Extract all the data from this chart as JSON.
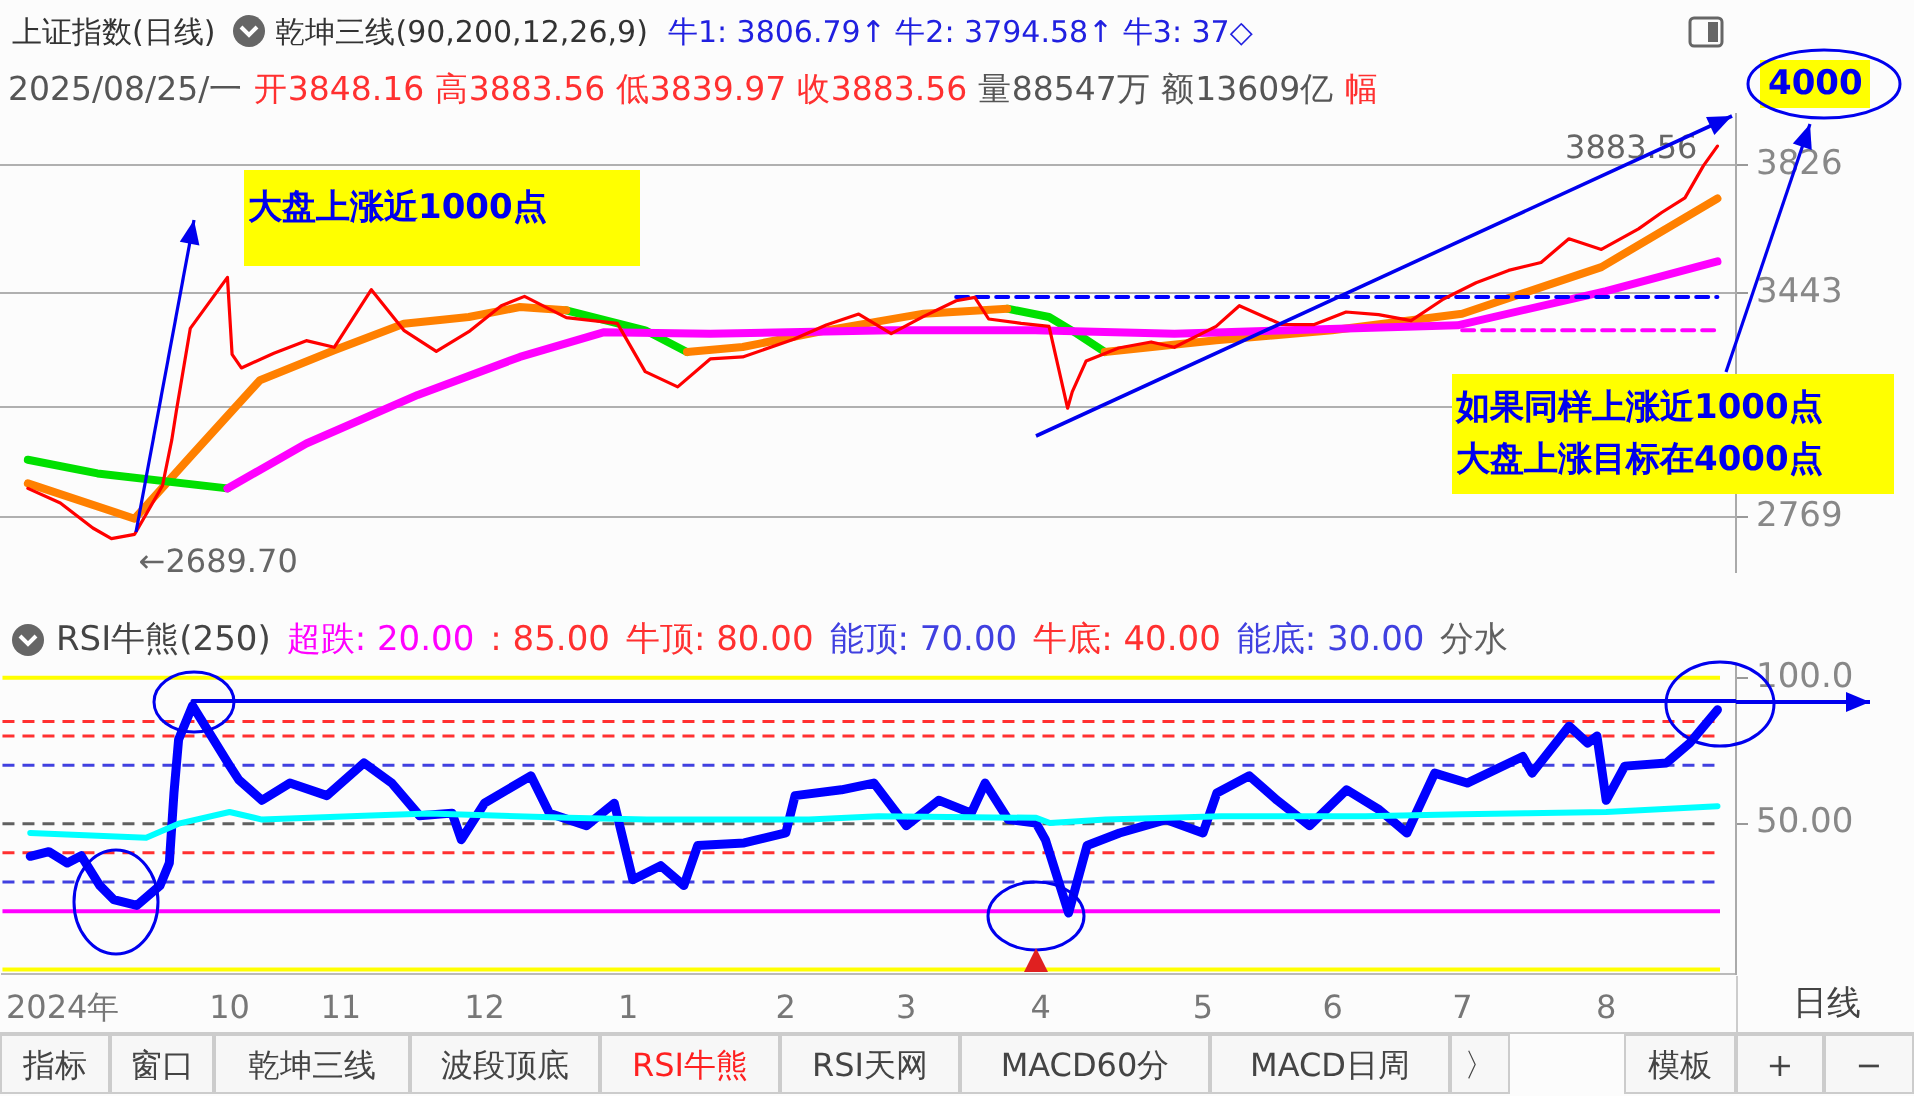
{
  "chart_data": [
    {
      "type": "line",
      "title": "上证指数(日线)",
      "subtitle": "2025/08/25/一 开3848.16 高3883.56 低3839.97 收3883.56 量88547万 额13609亿 幅",
      "annotations": [
        "乾坤三线(90,200,12,26,9)",
        "牛1: 3806.79↑ 牛2: 3794.58↑ 牛3: 37◇",
        "大盘上涨近1000点",
        "如果同样上涨近1000点",
        "大盘上涨目标在4000点",
        "4000",
        {
          "text": "←2689.70",
          "x": "2024-09-18",
          "y": 2689.7
        },
        {
          "text": "3883.56",
          "x": "2025-08-25",
          "y": 3883.56
        }
      ],
      "xlim": [
        "2024-08-20",
        "2025-08-29"
      ],
      "ylim": [
        2605,
        3980
      ],
      "yticks": [
        3826,
        3443,
        {
          "value": 3100,
          "label": null
        },
        2769
      ],
      "grid": "y",
      "tick_labels": "y",
      "series": [
        {
          "color": "#ff00ff",
          "x": [
            "2024-10-08",
            "2024-10-25",
            "2024-11-18",
            "2024-12-10",
            "2024-12-28",
            "2025-01-20",
            "2025-02-28",
            "2025-03-31",
            "2025-04-30",
            "2025-06-30",
            "2025-08-01",
            "2025-08-25"
          ],
          "values": [
            2855,
            2990,
            3136,
            3250,
            3324,
            3320,
            3330,
            3330,
            3320,
            3345,
            3448,
            3537
          ]
        },
        {
          "color": "#00e000",
          "x": [
            "2024-08-26",
            "2024-09-10",
            "2024-10-08"
          ],
          "values": [
            2941,
            2900,
            2855
          ]
        },
        {
          "color": "#ff8000",
          "x": [
            "2024-08-26",
            "2024-09-18",
            "2024-09-30",
            "2024-10-15",
            "2024-10-31",
            "2024-11-15",
            "2024-11-29",
            "2024-12-10",
            "2024-12-20",
            "2025-01-06",
            "2025-01-15",
            "2025-01-27",
            "2025-02-14",
            "2025-03-07",
            "2025-03-25",
            "2025-04-03",
            "2025-04-15",
            "2025-05-09",
            "2025-06-03",
            "2025-07-01",
            "2025-07-31",
            "2025-08-25"
          ],
          "values": [
            2870,
            2764,
            2950,
            3180,
            3270,
            3350,
            3370,
            3400,
            3390,
            null,
            3265,
            3280,
            3330,
            3380,
            3395,
            null,
            3265,
            3300,
            3330,
            3380,
            3520,
            3726
          ]
        },
        {
          "color": "#00e000",
          "x": [
            "2024-12-20",
            "2025-01-06",
            "2025-01-15",
            "2025-02-10",
            "2025-03-25",
            "2025-04-03",
            "2025-04-09",
            "2025-04-15"
          ],
          "values": [
            3390,
            3330,
            3265,
            null,
            3395,
            3370,
            3320,
            3265
          ]
        },
        {
          "color": "#ff0000",
          "x": [
            "2024-08-26",
            "2024-09-02",
            "2024-09-09",
            "2024-09-13",
            "2024-09-18",
            "2024-09-24",
            "2024-09-26",
            "2024-09-27",
            "2024-09-30",
            "2024-10-08",
            "2024-10-09",
            "2024-10-11",
            "2024-10-18",
            "2024-10-25",
            "2024-10-31",
            "2024-11-08",
            "2024-11-15",
            "2024-11-22",
            "2024-11-29",
            "2024-12-06",
            "2024-12-11",
            "2024-12-20",
            "2024-12-31",
            "2025-01-06",
            "2025-01-13",
            "2025-01-20",
            "2025-01-27",
            "2025-02-07",
            "2025-02-14",
            "2025-02-21",
            "2025-02-28",
            "2025-03-07",
            "2025-03-14",
            "2025-03-18",
            "2025-03-21",
            "2025-03-28",
            "2025-04-03",
            "2025-04-07",
            "2025-04-08",
            "2025-04-11",
            "2025-04-18",
            "2025-04-25",
            "2025-04-30",
            "2025-05-09",
            "2025-05-14",
            "2025-05-23",
            "2025-05-30",
            "2025-06-06",
            "2025-06-13",
            "2025-06-20",
            "2025-06-27",
            "2025-07-04",
            "2025-07-11",
            "2025-07-18",
            "2025-07-24",
            "2025-07-31",
            "2025-08-08",
            "2025-08-13",
            "2025-08-18",
            "2025-08-22",
            "2025-08-25"
          ],
          "values": [
            2855,
            2811,
            2736,
            2704,
            2717,
            2863,
            3000,
            3088,
            3336,
            3489,
            3258,
            3217,
            3261,
            3299,
            3279,
            3452,
            3330,
            3267,
            3326,
            3404,
            3432,
            3368,
            3351,
            3206,
            3160,
            3244,
            3250,
            3303,
            3346,
            3379,
            3320,
            3372,
            3419,
            3429,
            3364,
            3351,
            3342,
            3096,
            3145,
            3238,
            3277,
            3295,
            3279,
            3342,
            3404,
            3348,
            3347,
            3385,
            3377,
            3359,
            3424,
            3473,
            3510,
            3534,
            3605,
            3573,
            3635,
            3684,
            3728,
            3825,
            3883.56
          ]
        },
        {
          "color": "#0000ff",
          "line_style": "dashed",
          "x": [
            "2025-03-14",
            "2025-08-25"
          ],
          "values": [
            3430,
            3430
          ]
        },
        {
          "color": "#ff00ff",
          "line_style": "dashed",
          "x": [
            "2025-07-01",
            "2025-08-25"
          ],
          "values": [
            3330,
            3330
          ]
        }
      ]
    },
    {
      "type": "line",
      "title": "RSI牛熊(250)",
      "xlim": [
        "2024-08-20",
        "2025-08-29"
      ],
      "xticks": [
        {
          "value": "2024-09-02",
          "label": "2024年"
        },
        {
          "value": "2024-10-08",
          "label": "10"
        },
        {
          "value": "2024-11-01",
          "label": "11"
        },
        {
          "value": "2024-12-02",
          "label": "12"
        },
        {
          "value": "2025-01-02",
          "label": "1"
        },
        {
          "value": "2025-02-05",
          "label": "2"
        },
        {
          "value": "2025-03-03",
          "label": "3"
        },
        {
          "value": "2025-04-01",
          "label": "4"
        },
        {
          "value": "2025-05-06",
          "label": "5"
        },
        {
          "value": "2025-06-03",
          "label": "6"
        },
        {
          "value": "2025-07-01",
          "label": "7"
        },
        {
          "value": "2025-08-01",
          "label": "8"
        }
      ],
      "ylim": [
        -1.5,
        104
      ],
      "yticks": [
        {
          "value": 100,
          "label": "100.0"
        },
        {
          "value": 50,
          "label": "50.00"
        }
      ],
      "ref_lines": [
        {
          "axis": "y",
          "value": 20,
          "label": "超跌: 20.00",
          "color": "#ff00ff",
          "line_style": "solid"
        },
        {
          "axis": "y",
          "value": 85,
          "label": ": 85.00",
          "color": "#ff3030",
          "line_style": "dashed"
        },
        {
          "axis": "y",
          "value": 80,
          "label": "牛顶: 80.00",
          "color": "#ff3030",
          "line_style": "dashed"
        },
        {
          "axis": "y",
          "value": 70,
          "label": "能顶: 70.00",
          "color": "#4040e0",
          "line_style": "dashed"
        },
        {
          "axis": "y",
          "value": 40,
          "label": "牛底: 40.00",
          "color": "#ff3030",
          "line_style": "dashed"
        },
        {
          "axis": "y",
          "value": 30,
          "label": "能底: 30.00",
          "color": "#4040e0",
          "line_style": "dashed"
        },
        {
          "axis": "y",
          "value": 50,
          "label": "分水",
          "color": "#606060",
          "line_style": "dashed"
        },
        {
          "axis": "y",
          "value": 100,
          "color": "#ffff00",
          "line_style": "solid"
        },
        {
          "axis": "y",
          "value": 0,
          "color": "#ffff00",
          "line_style": "solid"
        }
      ],
      "series": [
        {
          "color": "#0000ee",
          "x": [
            "2024-09-30",
            "2025-08-29"
          ],
          "values": [
            92,
            92
          ]
        },
        {
          "color": "#00ffff",
          "x": [
            "2024-08-26",
            "2024-09-20",
            "2024-09-27",
            "2024-10-08",
            "2024-10-15",
            "2024-11-06",
            "2024-11-20",
            "2024-12-20",
            "2025-01-06",
            "2025-02-10",
            "2025-02-25",
            "2025-03-31",
            "2025-04-03",
            "2025-04-15",
            "2025-05-10",
            "2025-06-10",
            "2025-07-01",
            "2025-07-15",
            "2025-08-01",
            "2025-08-25"
          ],
          "values": [
            46.8,
            45.2,
            50,
            54,
            51.4,
            52.7,
            53.5,
            52,
            51.4,
            51.4,
            52.5,
            52,
            50.2,
            51.4,
            52.5,
            52.5,
            53.2,
            53.6,
            54,
            56
          ]
        },
        {
          "color": "#0000ff",
          "x": [
            "2024-08-26",
            "2024-08-30",
            "2024-09-03",
            "2024-09-06",
            "2024-09-10",
            "2024-09-13",
            "2024-09-18",
            "2024-09-23",
            "2024-09-25",
            "2024-09-26",
            "2024-09-27",
            "2024-09-30",
            "2024-10-08",
            "2024-10-10",
            "2024-10-15",
            "2024-10-21",
            "2024-10-29",
            "2024-11-06",
            "2024-11-12",
            "2024-11-18",
            "2024-11-25",
            "2024-11-27",
            "2024-12-02",
            "2024-12-12",
            "2024-12-16",
            "2024-12-24",
            "2024-12-30",
            "2025-01-03",
            "2025-01-09",
            "2025-01-14",
            "2025-01-17",
            "2025-01-27",
            "2025-02-05",
            "2025-02-07",
            "2025-02-17",
            "2025-02-24",
            "2025-03-03",
            "2025-03-10",
            "2025-03-17",
            "2025-03-20",
            "2025-03-25",
            "2025-03-31",
            "2025-04-02",
            "2025-04-07",
            "2025-04-11",
            "2025-04-18",
            "2025-04-28",
            "2025-05-06",
            "2025-05-09",
            "2025-05-16",
            "2025-05-22",
            "2025-05-29",
            "2025-06-06",
            "2025-06-13",
            "2025-06-19",
            "2025-06-25",
            "2025-07-02",
            "2025-07-14",
            "2025-07-16",
            "2025-07-24",
            "2025-07-28",
            "2025-07-30",
            "2025-08-01",
            "2025-08-05",
            "2025-08-14",
            "2025-08-19",
            "2025-08-25"
          ],
          "values": [
            38.8,
            40.4,
            36.5,
            39,
            28.8,
            24,
            22,
            28.8,
            36.5,
            60.5,
            78.8,
            90.4,
            69.9,
            65,
            58,
            63.9,
            59.6,
            70.8,
            63.9,
            52.7,
            53.6,
            44.5,
            57,
            66.4,
            53.6,
            49.3,
            57,
            30.8,
            35.6,
            28.8,
            42.5,
            43.4,
            46.8,
            59.6,
            61.6,
            63.9,
            49.3,
            58,
            53.6,
            63.9,
            51.4,
            50.2,
            44.5,
            19.4,
            42.5,
            46.8,
            51.4,
            46.8,
            60.5,
            66.4,
            58,
            49.3,
            61.6,
            54.8,
            46.8,
            67.3,
            63.9,
            73,
            67.3,
            83.4,
            77.6,
            80,
            58,
            69.7,
            70.8,
            77.6,
            89
          ]
        }
      ]
    },
    {
      "type": "other",
      "annotations": [
        "日线",
        "指标",
        "窗口",
        "乾坤三线",
        "波段顶底",
        "RSI牛熊",
        "RSI天网",
        "MACD60分",
        "MACD日周",
        "〉",
        "模板",
        "+",
        "−"
      ]
    }
  ]
}
